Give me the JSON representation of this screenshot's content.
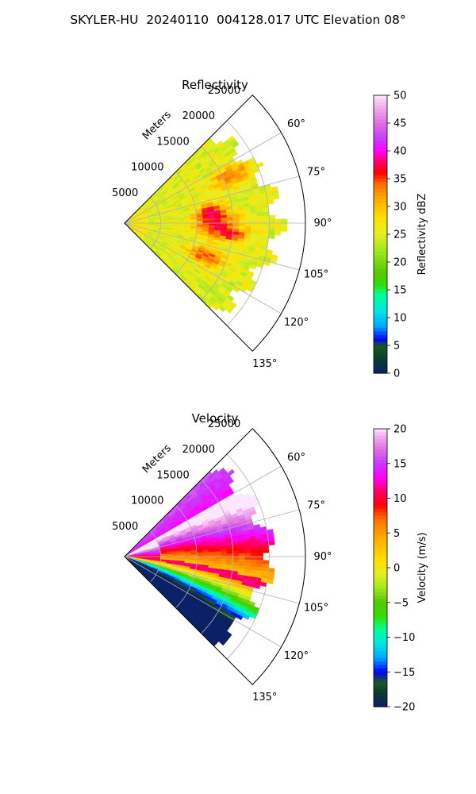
{
  "figure": {
    "suptitle": "SKYLER-HU  20240110  004128.017 UTC Elevation 08°"
  },
  "chart_data": [
    {
      "type": "heatmap",
      "subtype": "polar-sector",
      "title": "Reflectivity",
      "range_axis_label": "Meters",
      "range_ticks": [
        5000,
        10000,
        15000,
        20000,
        25000
      ],
      "range_max": 25000,
      "azimuth_range_deg": [
        45,
        135
      ],
      "azimuth_ticks": [
        "60°",
        "75°",
        "90°",
        "105°",
        "120°",
        "135°"
      ],
      "colorbar": {
        "label": "Reflectivity dBZ",
        "min": 0,
        "max": 50,
        "ticks": [
          "0",
          "5",
          "10",
          "15",
          "20",
          "25",
          "30",
          "35",
          "40",
          "45",
          "50"
        ],
        "stops": [
          {
            "v": 0,
            "c": "#0a1f66"
          },
          {
            "v": 2.5,
            "c": "#0b3b2f"
          },
          {
            "v": 5,
            "c": "#1a5a1f"
          },
          {
            "v": 6,
            "c": "#0000ff"
          },
          {
            "v": 8.5,
            "c": "#00a8ff"
          },
          {
            "v": 11,
            "c": "#00e5e5"
          },
          {
            "v": 14,
            "c": "#00ffa0"
          },
          {
            "v": 16,
            "c": "#33dd00"
          },
          {
            "v": 18,
            "c": "#55c800"
          },
          {
            "v": 22,
            "c": "#9fe820"
          },
          {
            "v": 25,
            "c": "#e4ee22"
          },
          {
            "v": 28,
            "c": "#ffe000"
          },
          {
            "v": 31,
            "c": "#ffb000"
          },
          {
            "v": 34,
            "c": "#ff7000"
          },
          {
            "v": 36,
            "c": "#ff0000"
          },
          {
            "v": 38,
            "c": "#ff0066"
          },
          {
            "v": 40,
            "c": "#ff00ff"
          },
          {
            "v": 42,
            "c": "#c838ff"
          },
          {
            "v": 45,
            "c": "#e070e0"
          },
          {
            "v": 48,
            "c": "#f4b0f0"
          },
          {
            "v": 50,
            "c": "#ffe6ff"
          }
        ]
      }
    },
    {
      "type": "heatmap",
      "subtype": "polar-sector",
      "title": "Velocity",
      "range_axis_label": "Meters",
      "range_ticks": [
        5000,
        10000,
        15000,
        20000,
        25000
      ],
      "range_max": 25000,
      "azimuth_range_deg": [
        45,
        135
      ],
      "azimuth_ticks": [
        "60°",
        "75°",
        "90°",
        "105°",
        "120°",
        "135°"
      ],
      "colorbar": {
        "label": "Velocity (m/s)",
        "min": -20,
        "max": 20,
        "ticks": [
          "−20",
          "−15",
          "−10",
          "−5",
          "0",
          "5",
          "10",
          "15",
          "20"
        ],
        "stops": [
          {
            "v": -20,
            "c": "#0a1f66"
          },
          {
            "v": -18,
            "c": "#0b3b2f"
          },
          {
            "v": -16.5,
            "c": "#1a5a1f"
          },
          {
            "v": -15,
            "c": "#0000ff"
          },
          {
            "v": -13,
            "c": "#00a8ff"
          },
          {
            "v": -11,
            "c": "#00e5e5"
          },
          {
            "v": -9,
            "c": "#00ffa0"
          },
          {
            "v": -7,
            "c": "#33dd00"
          },
          {
            "v": -5,
            "c": "#55c800"
          },
          {
            "v": -3,
            "c": "#9fe820"
          },
          {
            "v": -1,
            "c": "#e4ee22"
          },
          {
            "v": 1,
            "c": "#ffe000"
          },
          {
            "v": 4,
            "c": "#ffb000"
          },
          {
            "v": 7,
            "c": "#ff7000"
          },
          {
            "v": 9,
            "c": "#ff0000"
          },
          {
            "v": 11,
            "c": "#ff0066"
          },
          {
            "v": 13,
            "c": "#ff00ff"
          },
          {
            "v": 15,
            "c": "#c838ff"
          },
          {
            "v": 17,
            "c": "#e070e0"
          },
          {
            "v": 19,
            "c": "#f4b0f0"
          },
          {
            "v": 20,
            "c": "#ffe6ff"
          }
        ]
      }
    }
  ]
}
